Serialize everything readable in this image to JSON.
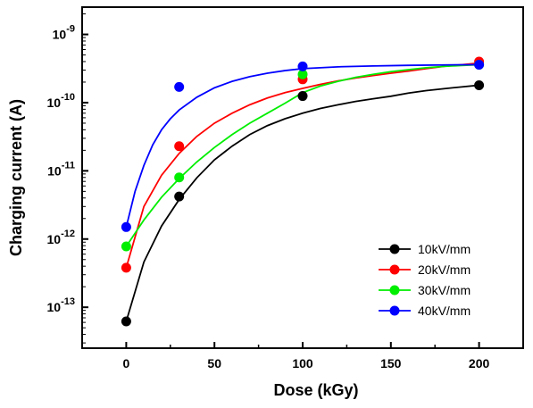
{
  "chart_data": {
    "type": "scatter",
    "xlabel": "Dose (kGy)",
    "ylabel": "Charging current (A)",
    "xlim": [
      -25,
      225
    ],
    "ylim_log10": [
      -13.6,
      -8.6
    ],
    "y_scale": "log",
    "x_ticks": [
      0,
      50,
      100,
      150,
      200
    ],
    "x_tick_labels": [
      "0",
      "50",
      "100",
      "150",
      "200"
    ],
    "y_ticks": [
      -13,
      -12,
      -11,
      -10,
      -9
    ],
    "y_tick_labels": [
      {
        "base": "10",
        "exp": "-13"
      },
      {
        "base": "10",
        "exp": "-12"
      },
      {
        "base": "10",
        "exp": "-11"
      },
      {
        "base": "10",
        "exp": "-10"
      },
      {
        "base": "10",
        "exp": "-9"
      }
    ],
    "legend_position": "bottom-right",
    "grid": false,
    "series": [
      {
        "name": "10kV/mm",
        "color": "#000000",
        "x": [
          0,
          30,
          100,
          200
        ],
        "y": [
          6.2e-14,
          4.2e-12,
          1.25e-10,
          1.8e-10
        ],
        "fit_x": [
          0,
          10,
          20,
          30,
          40,
          50,
          60,
          70,
          80,
          90,
          100,
          110,
          120,
          130,
          140,
          150,
          160,
          170,
          180,
          190,
          200
        ],
        "fit_y": [
          6.2e-14,
          4.6e-13,
          1.55e-12,
          3.8e-12,
          7.9e-12,
          1.45e-11,
          2.3e-11,
          3.4e-11,
          4.6e-11,
          5.8e-11,
          7e-11,
          8.2e-11,
          9.3e-11,
          1.04e-10,
          1.14e-10,
          1.24e-10,
          1.38e-10,
          1.5e-10,
          1.6e-10,
          1.7e-10,
          1.8e-10
        ]
      },
      {
        "name": "20kV/mm",
        "color": "#ff0000",
        "x": [
          0,
          30,
          100,
          200
        ],
        "y": [
          3.8e-13,
          2.3e-11,
          2.2e-10,
          4e-10
        ],
        "fit_x": [
          0,
          10,
          20,
          30,
          40,
          50,
          60,
          70,
          80,
          90,
          100,
          110,
          120,
          130,
          140,
          150,
          160,
          170,
          180,
          190,
          200
        ],
        "fit_y": [
          3.8e-13,
          3e-12,
          8.6e-12,
          1.8e-11,
          3.2e-11,
          5e-11,
          7e-11,
          9.3e-11,
          1.17e-10,
          1.4e-10,
          1.62e-10,
          1.85e-10,
          2.08e-10,
          2.3e-10,
          2.5e-10,
          2.7e-10,
          2.9e-10,
          3.15e-10,
          3.4e-10,
          3.6e-10,
          3.8e-10
        ]
      },
      {
        "name": "30kV/mm",
        "color": "#00ee00",
        "x": [
          0,
          30,
          100,
          200
        ],
        "y": [
          7.8e-13,
          8e-12,
          2.6e-10,
          3.6e-10
        ],
        "fit_x": [
          0,
          10,
          20,
          30,
          40,
          50,
          60,
          70,
          80,
          90,
          100,
          110,
          120,
          130,
          140,
          150,
          160,
          170,
          180,
          190,
          200
        ],
        "fit_y": [
          7.8e-13,
          1.9e-12,
          4.1e-12,
          7.7e-12,
          1.35e-11,
          2.2e-11,
          3.4e-11,
          5e-11,
          7e-11,
          9.8e-11,
          1.4e-10,
          1.75e-10,
          2.05e-10,
          2.35e-10,
          2.6e-10,
          2.85e-10,
          3.05e-10,
          3.25e-10,
          3.4e-10,
          3.5e-10,
          3.6e-10
        ]
      },
      {
        "name": "40kV/mm",
        "color": "#0000ff",
        "x": [
          0,
          30,
          100,
          200
        ],
        "y": [
          1.5e-12,
          1.7e-10,
          3.4e-10,
          3.6e-10
        ],
        "fit_x": [
          0,
          5,
          10,
          15,
          20,
          25,
          30,
          40,
          50,
          60,
          70,
          80,
          90,
          100,
          120,
          140,
          160,
          180,
          200
        ],
        "fit_y": [
          1.5e-12,
          5e-12,
          1.2e-11,
          2.4e-11,
          4e-11,
          5.8e-11,
          7.8e-11,
          1.2e-10,
          1.65e-10,
          2.05e-10,
          2.4e-10,
          2.7e-10,
          2.95e-10,
          3.15e-10,
          3.35e-10,
          3.45e-10,
          3.52e-10,
          3.57e-10,
          3.6e-10
        ]
      }
    ]
  }
}
